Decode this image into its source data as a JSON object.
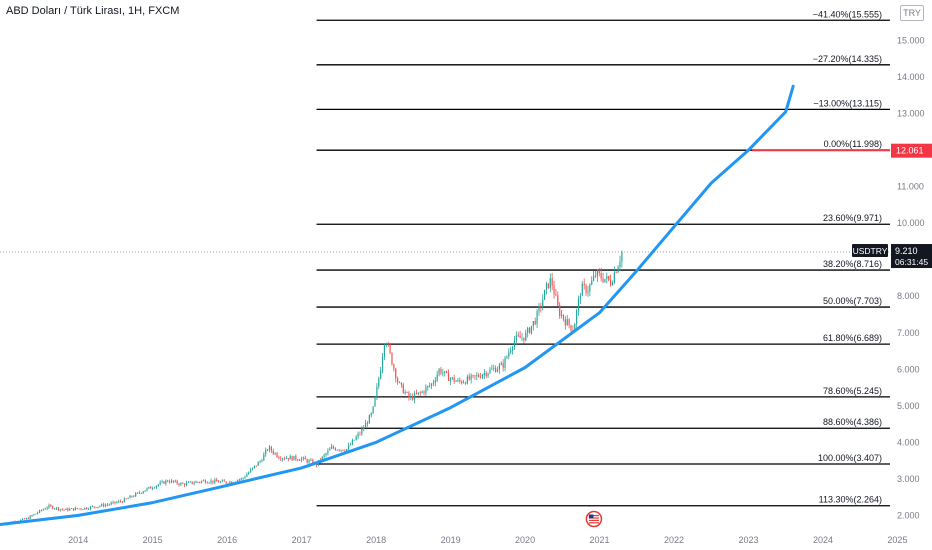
{
  "header": {
    "title": "ABD Doları / Türk Lirası, 1H, FXCM",
    "currency": "TRY"
  },
  "price_tag": {
    "symbol": "USDTRY",
    "price": "9.210",
    "countdown": "06:31:45",
    "target_price": "12.061",
    "target_color": "#f23645"
  },
  "colors": {
    "curve": "#2196f3",
    "up": "#26a69a",
    "down": "#ef5350",
    "level_line": "#000000",
    "axis_text": "#787b86"
  },
  "icons": {
    "flag": "us-flag-icon"
  },
  "chart_data": {
    "type": "line",
    "title": "ABD Doları / Türk Lirası, 1H, FXCM",
    "xlabel": "",
    "ylabel": "",
    "x_ticks": [
      "2014",
      "2015",
      "2016",
      "2017",
      "2018",
      "2019",
      "2020",
      "2021",
      "2022",
      "2023",
      "2024",
      "2025"
    ],
    "y_ticks": [
      "2.000",
      "3.000",
      "4.000",
      "5.000",
      "6.000",
      "7.000",
      "8.000",
      "9.000",
      "10.000",
      "11.000",
      "12.000",
      "13.000",
      "14.000",
      "15.000"
    ],
    "xlim": [
      2013.45,
      2025.4
    ],
    "ylim": [
      1.6,
      16.0
    ],
    "fib_levels": [
      {
        "label": "−41.40%(15.555)",
        "value": 15.555
      },
      {
        "label": "−27.20%(14.335)",
        "value": 14.335
      },
      {
        "label": "−13.00%(13.115)",
        "value": 13.115
      },
      {
        "label": "0.00%(11.998)",
        "value": 11.998
      },
      {
        "label": "23.60%(9.971)",
        "value": 9.971
      },
      {
        "label": "38.20%(8.716)",
        "value": 8.716
      },
      {
        "label": "50.00%(7.703)",
        "value": 7.703
      },
      {
        "label": "61.80%(6.689)",
        "value": 6.689
      },
      {
        "label": "78.60%(5.245)",
        "value": 5.245
      },
      {
        "label": "88.60%(4.386)",
        "value": 4.386
      },
      {
        "label": "100.00%(3.407)",
        "value": 3.407
      },
      {
        "label": "113.30%(2.264)",
        "value": 2.264
      }
    ],
    "fib_start_x": 2017.7,
    "series": [
      {
        "values": [
          [
            2013.45,
            1.75
          ],
          [
            2013.8,
            1.9
          ],
          [
            2014.1,
            2.25
          ],
          [
            2014.3,
            2.15
          ],
          [
            2014.6,
            2.2
          ],
          [
            2014.9,
            2.3
          ],
          [
            2015.1,
            2.4
          ],
          [
            2015.4,
            2.7
          ],
          [
            2015.7,
            2.95
          ],
          [
            2015.9,
            2.85
          ],
          [
            2016.2,
            2.95
          ],
          [
            2016.5,
            2.9
          ],
          [
            2016.7,
            3.0
          ],
          [
            2016.95,
            3.5
          ],
          [
            2017.05,
            3.85
          ],
          [
            2017.2,
            3.6
          ],
          [
            2017.5,
            3.55
          ],
          [
            2017.7,
            3.4
          ],
          [
            2017.9,
            3.85
          ],
          [
            2018.1,
            3.8
          ],
          [
            2018.3,
            4.3
          ],
          [
            2018.45,
            4.8
          ],
          [
            2018.55,
            5.9
          ],
          [
            2018.62,
            6.9
          ],
          [
            2018.7,
            6.3
          ],
          [
            2018.8,
            5.6
          ],
          [
            2018.95,
            5.2
          ],
          [
            2019.1,
            5.35
          ],
          [
            2019.25,
            5.6
          ],
          [
            2019.35,
            6.0
          ],
          [
            2019.45,
            5.8
          ],
          [
            2019.6,
            5.65
          ],
          [
            2019.8,
            5.75
          ],
          [
            2019.95,
            5.9
          ],
          [
            2020.2,
            6.1
          ],
          [
            2020.35,
            6.8
          ],
          [
            2020.5,
            6.9
          ],
          [
            2020.65,
            7.4
          ],
          [
            2020.8,
            8.3
          ],
          [
            2020.85,
            8.45
          ],
          [
            2020.95,
            7.6
          ],
          [
            2021.05,
            7.3
          ],
          [
            2021.15,
            7.1
          ],
          [
            2021.25,
            8.2
          ],
          [
            2021.35,
            8.2
          ],
          [
            2021.45,
            8.6
          ],
          [
            2021.55,
            8.5
          ],
          [
            2021.65,
            8.4
          ],
          [
            2021.75,
            8.9
          ],
          [
            2021.8,
            9.21
          ]
        ]
      },
      {
        "curve": [
          [
            2013.45,
            1.75
          ],
          [
            2014.5,
            2.0
          ],
          [
            2015.5,
            2.35
          ],
          [
            2016.5,
            2.82
          ],
          [
            2017.5,
            3.3
          ],
          [
            2018.5,
            4.0
          ],
          [
            2019.5,
            4.95
          ],
          [
            2020.5,
            6.05
          ],
          [
            2021.5,
            7.55
          ],
          [
            2022.0,
            8.7
          ],
          [
            2022.5,
            9.9
          ],
          [
            2023.0,
            11.1
          ],
          [
            2023.5,
            12.0
          ],
          [
            2024.0,
            13.05
          ],
          [
            2024.1,
            13.75
          ]
        ]
      }
    ]
  }
}
